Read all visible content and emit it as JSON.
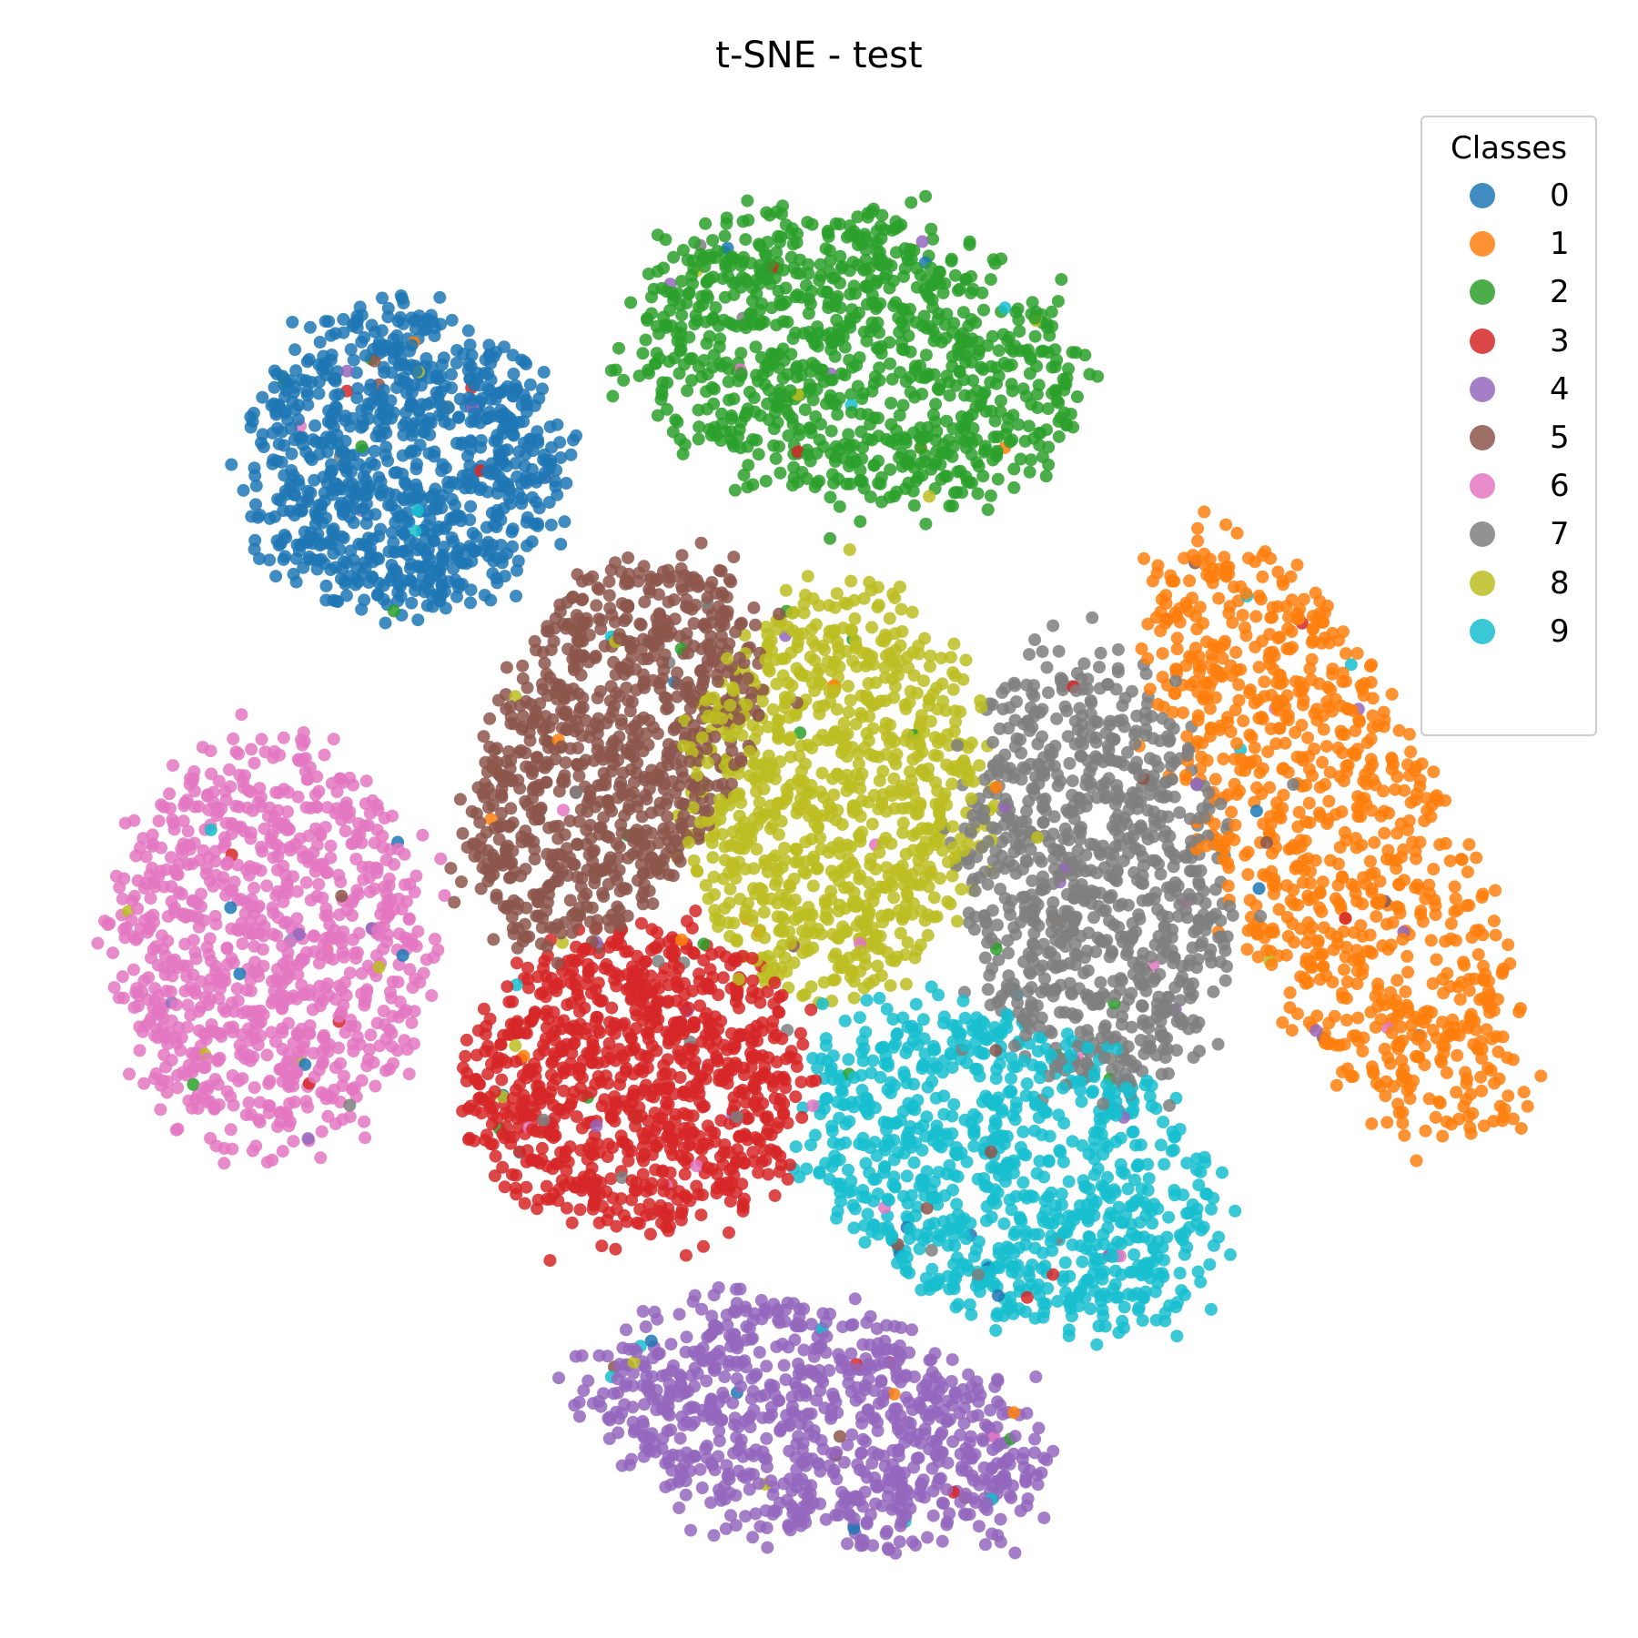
{
  "chart_data": {
    "type": "scatter",
    "title": "t-SNE - test",
    "xlabel": "",
    "ylabel": "",
    "axes_visible": false,
    "grid": false,
    "xlim": [
      -100,
      100
    ],
    "ylim": [
      -100,
      100
    ],
    "legend": {
      "title": "Classes",
      "placement": "top-right",
      "entries": [
        "0",
        "1",
        "2",
        "3",
        "4",
        "5",
        "6",
        "7",
        "8",
        "9"
      ]
    },
    "series": [
      {
        "name": "0",
        "color": "#1f77b4",
        "center": [
          -56,
          56
        ],
        "spread": [
          13,
          13
        ],
        "count": 900,
        "angle": 0.25
      },
      {
        "name": "1",
        "color": "#ff7f0e",
        "center": [
          70,
          4
        ],
        "spread": [
          10,
          28
        ],
        "count": 900,
        "angle": 0.45
      },
      {
        "name": "2",
        "color": "#2ca02c",
        "center": [
          5,
          70
        ],
        "spread": [
          19,
          12
        ],
        "count": 950,
        "angle": -0.2
      },
      {
        "name": "3",
        "color": "#d62728",
        "center": [
          -25,
          -28
        ],
        "spread": [
          14,
          13
        ],
        "count": 950,
        "angle": 0.1
      },
      {
        "name": "4",
        "color": "#9467bd",
        "center": [
          0,
          -75
        ],
        "spread": [
          19,
          10
        ],
        "count": 850,
        "angle": -0.25
      },
      {
        "name": "5",
        "color": "#8c564b",
        "center": [
          -28,
          17
        ],
        "spread": [
          10,
          18
        ],
        "count": 900,
        "angle": -0.45
      },
      {
        "name": "6",
        "color": "#e377c2",
        "center": [
          -74,
          -10
        ],
        "spread": [
          13,
          17
        ],
        "count": 900,
        "angle": 0.0
      },
      {
        "name": "7",
        "color": "#7f7f7f",
        "center": [
          37,
          0
        ],
        "spread": [
          11,
          18
        ],
        "count": 900,
        "angle": 0.15
      },
      {
        "name": "8",
        "color": "#bcbd22",
        "center": [
          2,
          11
        ],
        "spread": [
          12,
          17
        ],
        "count": 900,
        "angle": -0.1
      },
      {
        "name": "9",
        "color": "#17becf",
        "center": [
          26,
          -40
        ],
        "spread": [
          19,
          12
        ],
        "count": 900,
        "angle": -0.5
      }
    ]
  }
}
